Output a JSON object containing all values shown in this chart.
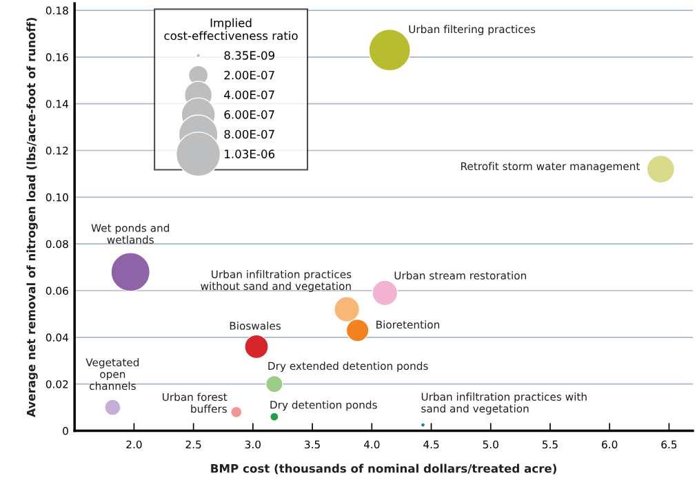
{
  "chart_data": {
    "type": "bubble",
    "xlabel": "BMP cost (thousands of nominal dollars/treated acre)",
    "ylabel": "Average net removal of nitrogen load (lbs/acre-foot of runoff)",
    "legend_title": "Implied\ncost-effectiveness ratio",
    "xlim": [
      1.5,
      6.7
    ],
    "ylim": [
      0,
      0.183
    ],
    "xticks": [
      {
        "value": 2.0,
        "label": "2.0"
      },
      {
        "value": 2.5,
        "label": "2.5"
      },
      {
        "value": 3.0,
        "label": "3.0"
      },
      {
        "value": 3.5,
        "label": "3.5"
      },
      {
        "value": 4.0,
        "label": "4.0"
      },
      {
        "value": 4.5,
        "label": "4.5"
      },
      {
        "value": 5.0,
        "label": "5.0"
      },
      {
        "value": 5.5,
        "label": "5.5"
      },
      {
        "value": 6.0,
        "label": "6.0"
      },
      {
        "value": 6.5,
        "label": "6.5"
      }
    ],
    "yticks": [
      0,
      {
        "value": 0.02,
        "label": "0.02"
      },
      {
        "value": 0.04,
        "label": "0.04"
      },
      {
        "value": 0.06,
        "label": "0.06"
      },
      {
        "value": 0.08,
        "label": "0.08"
      },
      {
        "value": 0.1,
        "label": "0.10"
      },
      {
        "value": 0.12,
        "label": "0.12"
      },
      {
        "value": 0.14,
        "label": "0.14"
      },
      {
        "value": 0.16,
        "label": "0.16"
      },
      {
        "value": 0.18,
        "label": "0.18"
      }
    ],
    "grid": "y",
    "size_legend": [
      {
        "value": 8.35e-09,
        "label": "8.35E-09"
      },
      {
        "value": 2e-07,
        "label": "2.00E-07"
      },
      {
        "value": 4e-07,
        "label": "4.00E-07"
      },
      {
        "value": 6e-07,
        "label": "6.00E-07"
      },
      {
        "value": 8e-07,
        "label": "8.00E-07"
      },
      {
        "value": 1.03e-06,
        "label": "1.03E-06"
      }
    ],
    "x": [
      4.15,
      6.43,
      4.11,
      3.79,
      3.88,
      1.97,
      3.03,
      3.18,
      1.82,
      2.86,
      3.18,
      4.43
    ],
    "values": [
      0.163,
      0.112,
      0.059,
      0.052,
      0.043,
      0.068,
      0.036,
      0.02,
      0.01,
      0.008,
      0.006,
      0.0025
    ],
    "sizes": [
      9e-07,
      4e-07,
      3.3e-07,
      3.3e-07,
      2.6e-07,
      7.9e-07,
      2.9e-07,
      1.45e-07,
      1.3e-07,
      6.4e-08,
      3.6e-08,
      8.35e-09
    ],
    "colors": [
      "#b8bd30",
      "#d9db8b",
      "#f2b3d3",
      "#f9b776",
      "#f58220",
      "#8e63a8",
      "#d4262b",
      "#9ccc85",
      "#c4afd6",
      "#f29596",
      "#22a048",
      "#1f77b4"
    ],
    "annotations": [
      {
        "text": "Urban filtering practices",
        "x": 4.15,
        "y": 0.163
      },
      {
        "text": "Retrofit storm water management",
        "x": 6.43,
        "y": 0.112
      },
      {
        "text": "Urban stream restoration",
        "x": 4.11,
        "y": 0.059
      },
      {
        "text": "Urban infiltration practices\nwithout sand and vegetation",
        "x": 3.79,
        "y": 0.052
      },
      {
        "text": "Bioretention",
        "x": 3.88,
        "y": 0.043
      },
      {
        "text": "Wet ponds and\nwetlands",
        "x": 1.97,
        "y": 0.068
      },
      {
        "text": "Bioswales",
        "x": 3.03,
        "y": 0.036
      },
      {
        "text": "Dry extended detention ponds",
        "x": 3.18,
        "y": 0.02
      },
      {
        "text": "Vegetated\nopen\nchannels",
        "x": 1.82,
        "y": 0.01
      },
      {
        "text": "Urban forest\nbuffers",
        "x": 2.86,
        "y": 0.008
      },
      {
        "text": "Dry detention ponds",
        "x": 3.18,
        "y": 0.006
      },
      {
        "text": "Urban infiltration practices with\nsand and vegetation",
        "x": 4.43,
        "y": 0.0025
      }
    ]
  }
}
